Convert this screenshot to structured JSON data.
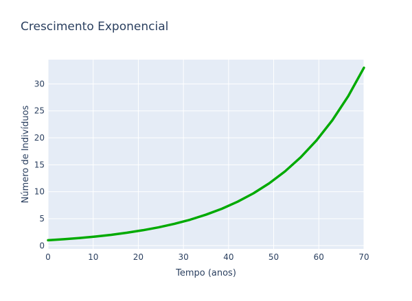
{
  "chart_data": {
    "type": "line",
    "title": "Crescimento Exponencial",
    "xlabel": "Tempo (anos)",
    "ylabel": "Número de Indivíduos",
    "xlim": [
      0,
      70
    ],
    "ylim": [
      -0.6,
      34.5
    ],
    "xticks": [
      0,
      10,
      20,
      30,
      40,
      50,
      60,
      70
    ],
    "yticks": [
      0,
      5,
      10,
      15,
      20,
      25,
      30
    ],
    "grid": true,
    "legend": "none",
    "colors": {
      "line": "#00aa00",
      "plot_bg": "#e5ecf6",
      "grid": "#ffffff",
      "text": "#2a3f5f"
    },
    "series": [
      {
        "x": [
          0,
          3.5,
          7,
          10.5,
          14,
          17.5,
          21,
          24.5,
          28,
          31.5,
          35,
          38.5,
          42,
          45.5,
          49,
          52.5,
          56,
          59.5,
          63,
          66.5,
          70
        ],
        "y": [
          1.0,
          1.19,
          1.42,
          1.69,
          2.01,
          2.4,
          2.86,
          3.4,
          4.05,
          4.82,
          5.75,
          6.84,
          8.15,
          9.7,
          11.56,
          13.77,
          16.4,
          19.53,
          23.26,
          27.7,
          33.0
        ]
      }
    ]
  }
}
